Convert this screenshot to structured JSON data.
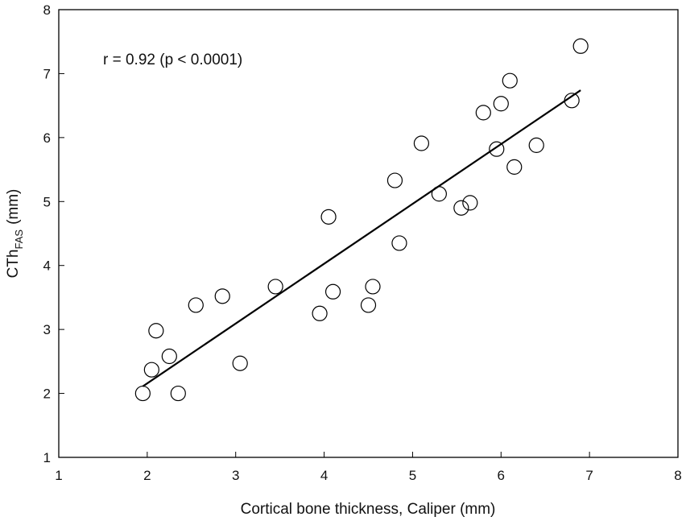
{
  "chart_data": {
    "type": "scatter",
    "xlabel": "Cortical bone thickness, Caliper (mm)",
    "ylabel": {
      "main": "CTh",
      "sub": "FAS",
      "unit": "(mm)"
    },
    "annotation": "r = 0.92 (p < 0.0001)",
    "xlim": [
      1,
      8
    ],
    "xticks": [
      1,
      2,
      3,
      4,
      5,
      6,
      7,
      8
    ],
    "ylim": [
      1,
      8
    ],
    "yticks": [
      1,
      2,
      3,
      4,
      5,
      6,
      7,
      8
    ],
    "color": "#000000",
    "x": [
      1.95,
      2.05,
      2.1,
      2.25,
      2.35,
      2.55,
      2.85,
      3.05,
      3.45,
      3.95,
      4.05,
      4.1,
      4.5,
      4.55,
      4.8,
      4.85,
      5.1,
      5.3,
      5.55,
      5.65,
      5.8,
      5.95,
      6.0,
      6.1,
      6.15,
      6.4,
      6.8,
      6.9
    ],
    "y": [
      2.0,
      2.37,
      2.98,
      2.58,
      2.0,
      3.38,
      3.52,
      2.47,
      3.67,
      3.25,
      4.76,
      3.59,
      3.38,
      3.67,
      5.33,
      4.35,
      5.91,
      5.12,
      4.9,
      4.98,
      6.39,
      5.82,
      6.53,
      6.89,
      5.54,
      5.88,
      6.58,
      7.43
    ],
    "fit": {
      "x": [
        1.95,
        6.9
      ],
      "y": [
        2.11,
        6.74
      ]
    }
  }
}
